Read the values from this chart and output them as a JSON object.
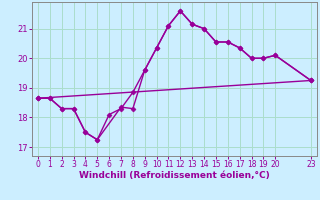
{
  "xlabel": "Windchill (Refroidissement éolien,°C)",
  "bg_color": "#cceeff",
  "grid_color": "#aaddcc",
  "line_color": "#990099",
  "spine_color": "#888888",
  "xlim": [
    -0.5,
    23.5
  ],
  "ylim": [
    16.7,
    21.9
  ],
  "xticks": [
    0,
    1,
    2,
    3,
    4,
    5,
    6,
    7,
    8,
    9,
    10,
    11,
    12,
    13,
    14,
    15,
    16,
    17,
    18,
    19,
    20,
    23
  ],
  "yticks": [
    17,
    18,
    19,
    20,
    21
  ],
  "line1_x": [
    0,
    1,
    2,
    3,
    4,
    5,
    6,
    7,
    8,
    9,
    10,
    11,
    12,
    13,
    14,
    15,
    16,
    17,
    18,
    19,
    20,
    23
  ],
  "line1_y": [
    18.65,
    18.65,
    18.3,
    18.3,
    17.5,
    17.25,
    18.1,
    18.3,
    18.85,
    19.6,
    20.35,
    21.1,
    21.6,
    21.15,
    21.0,
    20.55,
    20.55,
    20.35,
    20.0,
    20.0,
    20.1,
    19.25
  ],
  "line2_x": [
    0,
    1,
    2,
    3,
    4,
    5,
    7,
    8,
    9,
    10,
    11,
    12,
    13,
    14,
    15,
    16,
    17,
    18,
    19,
    20,
    23
  ],
  "line2_y": [
    18.65,
    18.65,
    18.3,
    18.3,
    17.5,
    17.25,
    18.35,
    18.3,
    19.6,
    20.35,
    21.1,
    21.6,
    21.15,
    21.0,
    20.55,
    20.55,
    20.35,
    20.0,
    20.0,
    20.1,
    19.25
  ],
  "line3_x": [
    0,
    23
  ],
  "line3_y": [
    18.65,
    19.25
  ],
  "tick_fontsize": 5.5,
  "xlabel_fontsize": 6.5
}
